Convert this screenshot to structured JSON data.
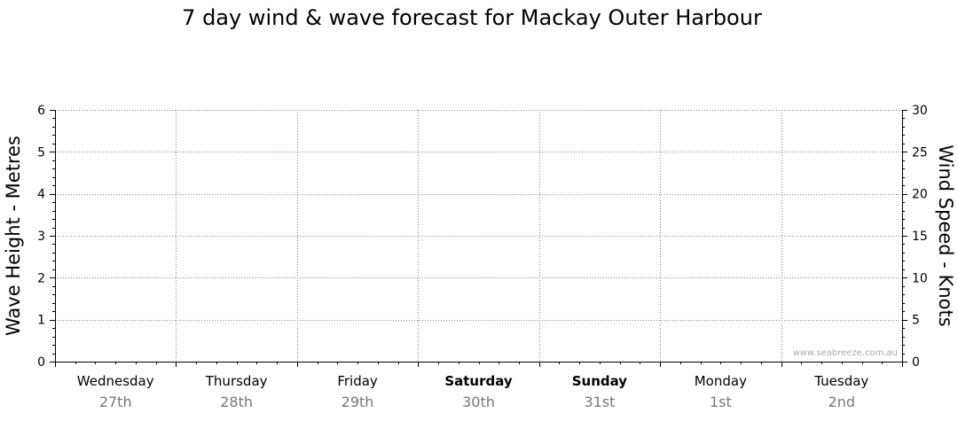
{
  "chart_data": {
    "type": "line",
    "title": "7 day wind & wave forecast for Mackay Outer Harbour",
    "ylabel": "Wave Height - Metres",
    "y2label": "Wind Speed - Knots",
    "ylim": [
      0,
      6
    ],
    "y2lim": [
      0,
      30
    ],
    "yticks": [
      "0",
      "1",
      "2",
      "3",
      "4",
      "5",
      "6"
    ],
    "y2ticks": [
      "0",
      "5",
      "10",
      "15",
      "20",
      "25",
      "30"
    ],
    "days": [
      {
        "name": "Wednesday",
        "date": "27th",
        "bold": false
      },
      {
        "name": "Thursday",
        "date": "28th",
        "bold": false
      },
      {
        "name": "Friday",
        "date": "29th",
        "bold": false
      },
      {
        "name": "Saturday",
        "date": "30th",
        "bold": true
      },
      {
        "name": "Sunday",
        "date": "31st",
        "bold": true
      },
      {
        "name": "Monday",
        "date": "1st",
        "bold": false
      },
      {
        "name": "Tuesday",
        "date": "2nd",
        "bold": false
      }
    ],
    "grid": true,
    "series": []
  },
  "watermark": "www.seabreeze.com.au"
}
